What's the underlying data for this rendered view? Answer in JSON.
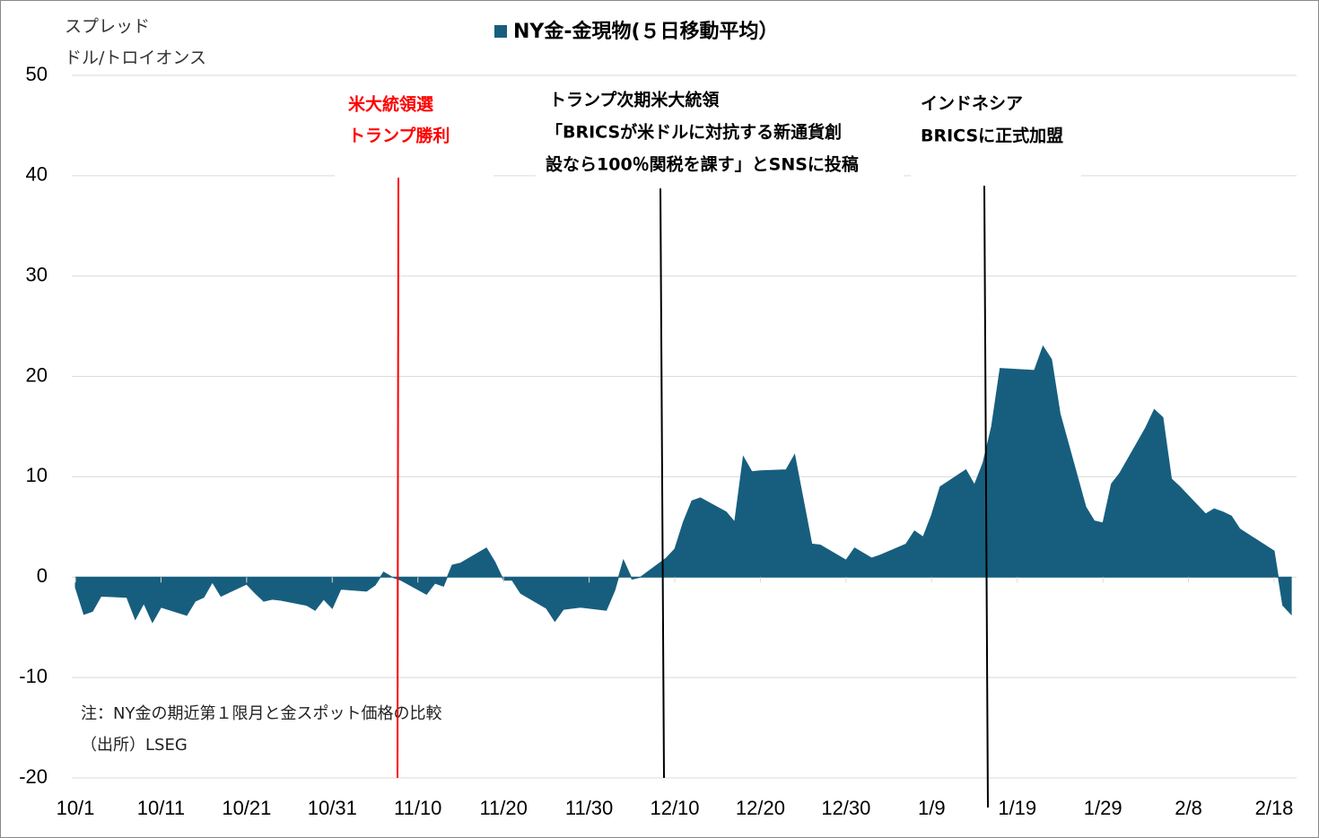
{
  "chart_data": {
    "type": "area",
    "legend": "NY金-金現物(５日移動平均）",
    "y_axis_label": [
      "スプレッド",
      "ドル/トロイオンス"
    ],
    "color": "#175e7e",
    "x": [
      "10/1",
      "10/2",
      "10/3",
      "10/4",
      "10/7",
      "10/8",
      "10/9",
      "10/10",
      "10/11",
      "10/14",
      "10/15",
      "10/16",
      "10/17",
      "10/18",
      "10/21",
      "10/22",
      "10/23",
      "10/24",
      "10/25",
      "10/28",
      "10/29",
      "10/30",
      "10/31",
      "11/1",
      "11/4",
      "11/5",
      "11/6",
      "11/7",
      "11/8",
      "11/11",
      "11/12",
      "11/13",
      "11/14",
      "11/15",
      "11/18",
      "11/19",
      "11/20",
      "11/21",
      "11/22",
      "11/25",
      "11/26",
      "11/27",
      "11/29",
      "12/2",
      "12/3",
      "12/4",
      "12/5",
      "12/6",
      "12/9",
      "12/10",
      "12/11",
      "12/12",
      "12/13",
      "12/16",
      "12/17",
      "12/18",
      "12/19",
      "12/20",
      "12/23",
      "12/24",
      "12/26",
      "12/27",
      "12/30",
      "12/31",
      "1/2",
      "1/3",
      "1/6",
      "1/7",
      "1/8",
      "1/9",
      "1/10",
      "1/13",
      "1/14",
      "1/15",
      "1/16",
      "1/17",
      "1/21",
      "1/22",
      "1/23",
      "1/24",
      "1/27",
      "1/28",
      "1/29",
      "1/30",
      "1/31",
      "2/3",
      "2/4",
      "2/5",
      "2/6",
      "2/7",
      "2/10",
      "2/11",
      "2/12",
      "2/13",
      "2/14",
      "2/18",
      "2/19",
      "2/20"
    ],
    "values": [
      -1.0,
      -3.7,
      -3.4,
      -1.9,
      -2.0,
      -4.2,
      -2.6,
      -4.5,
      -3.0,
      -3.8,
      -2.4,
      -2.0,
      -0.5,
      -1.9,
      -0.7,
      -1.6,
      -2.4,
      -2.2,
      -2.3,
      -2.8,
      -3.3,
      -2.2,
      -3.1,
      -1.2,
      -1.4,
      -0.8,
      0.5,
      0.0,
      -0.3,
      -1.7,
      -0.6,
      -0.9,
      1.2,
      1.4,
      2.9,
      1.5,
      -0.3,
      -0.3,
      -1.6,
      -3.1,
      -4.4,
      -3.2,
      -3.0,
      -3.3,
      -1.3,
      1.7,
      -0.2,
      0.0,
      1.9,
      2.8,
      5.5,
      7.6,
      7.9,
      6.5,
      5.5,
      12.0,
      10.5,
      10.6,
      10.7,
      12.2,
      3.3,
      3.2,
      1.7,
      2.9,
      1.9,
      2.2,
      3.3,
      4.6,
      4.0,
      6.2,
      9.0,
      10.7,
      9.2,
      11.4,
      15.0,
      20.8,
      20.6,
      23.0,
      21.7,
      16.3,
      7.0,
      5.6,
      5.4,
      9.3,
      10.4,
      14.9,
      16.7,
      15.9,
      9.8,
      9.0,
      6.3,
      6.8,
      6.5,
      6.1,
      4.8,
      2.6,
      -2.8,
      -3.7
    ],
    "ylim": [
      -20,
      50
    ],
    "yticks": [
      -20,
      -10,
      0,
      10,
      20,
      30,
      40,
      50
    ],
    "xticks": [
      "10/1",
      "10/11",
      "10/21",
      "10/31",
      "11/10",
      "11/20",
      "11/30",
      "12/10",
      "12/20",
      "12/30",
      "1/9",
      "1/19",
      "1/29",
      "2/8",
      "2/18"
    ],
    "grid": true,
    "annotations": [
      {
        "lines": [
          "米大統領選",
          "トランプ勝利"
        ],
        "color": "#ff0000"
      },
      {
        "lines": [
          "トランプ次期米大統領",
          "「BRICSが米ドルに対抗する新通貨創",
          "設なら100％関税を課す」とSNSに投稿"
        ],
        "color": "#000000"
      },
      {
        "lines": [
          "インドネシア",
          "BRICSに正式加盟"
        ],
        "color": "#000000"
      }
    ],
    "notes": [
      "注：NY金の期近第１限月と金スポット価格の比較",
      "（出所）LSEG"
    ]
  }
}
